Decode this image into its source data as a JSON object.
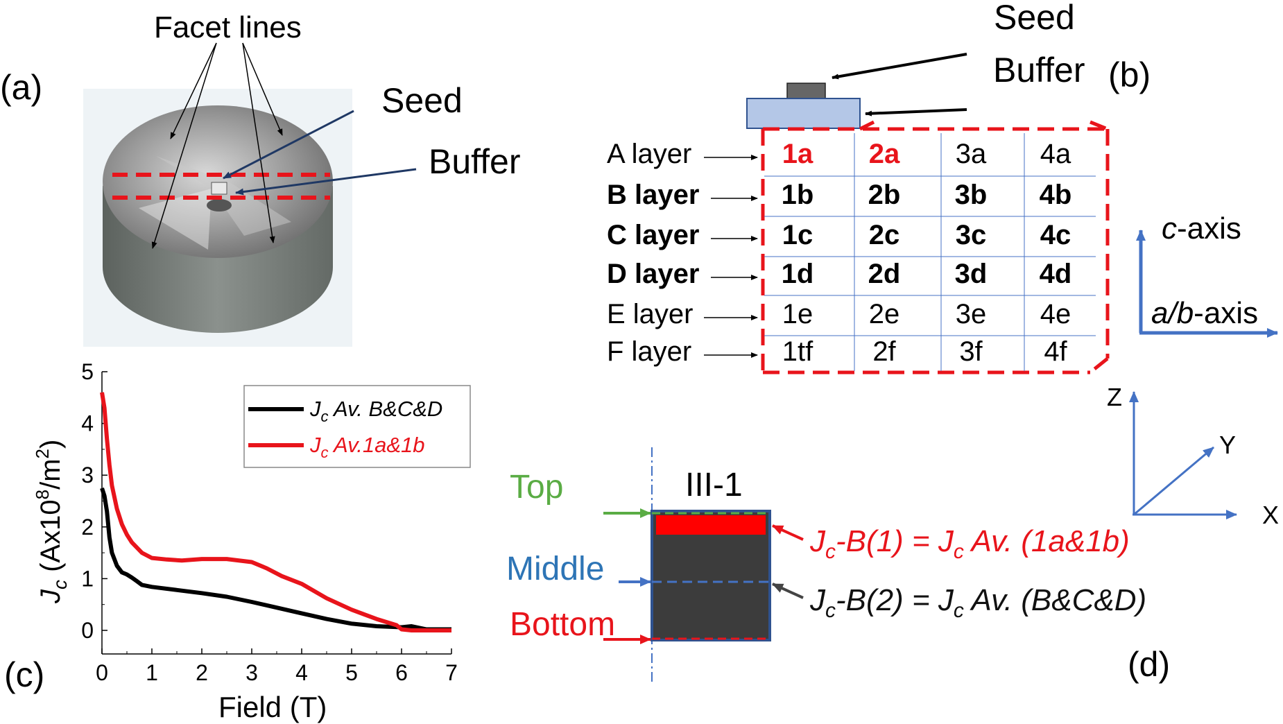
{
  "panel_a": {
    "label": "(a)",
    "facet_lines": "Facet lines",
    "seed": "Seed",
    "buffer": "Buffer"
  },
  "panel_b": {
    "label": "(b)",
    "seed": "Seed",
    "buffer": "Buffer",
    "layers": [
      {
        "name": "A layer",
        "bold": false,
        "cells": [
          "1a",
          "2a",
          "3a",
          "4a"
        ],
        "red": [
          true,
          true,
          false,
          false
        ]
      },
      {
        "name": "B layer",
        "bold": true,
        "cells": [
          "1b",
          "2b",
          "3b",
          "4b"
        ],
        "red": [
          false,
          false,
          false,
          false
        ]
      },
      {
        "name": "C layer",
        "bold": true,
        "cells": [
          "1c",
          "2c",
          "3c",
          "4c"
        ],
        "red": [
          false,
          false,
          false,
          false
        ]
      },
      {
        "name": "D layer",
        "bold": true,
        "cells": [
          "1d",
          "2d",
          "3d",
          "4d"
        ],
        "red": [
          false,
          false,
          false,
          false
        ]
      },
      {
        "name": "E layer",
        "bold": false,
        "cells": [
          "1e",
          "2e",
          "3e",
          "4e"
        ],
        "red": [
          false,
          false,
          false,
          false
        ]
      },
      {
        "name": "F layer",
        "bold": false,
        "cells": [
          "1tf",
          "2f",
          "3f",
          "4f"
        ],
        "red": [
          false,
          false,
          false,
          false
        ]
      }
    ],
    "c_axis": "c-axis",
    "ab_axis": "a/b-axis"
  },
  "panel_c": {
    "label": "(c)"
  },
  "panel_d": {
    "label": "(d)",
    "sample": "III-1",
    "top": "Top",
    "middle": "Middle",
    "bottom": "Bottom",
    "eq1": "Jc-B(1) = Jc Av. (1a&1b)",
    "eq2": "Jc-B(2) = Jc Av. (B&C&D)",
    "axes": {
      "z": "Z",
      "y": "Y",
      "x": "X"
    }
  },
  "colors": {
    "red": "#e8141b",
    "blue": "#4472c4",
    "green": "#5aac44",
    "dark_sample": "#3c3c3c"
  },
  "chart_data": {
    "type": "line",
    "xlabel": "Field (T)",
    "ylabel": "Jc (Ax10^8/m^2)",
    "xlim": [
      0,
      7
    ],
    "ylim": [
      0,
      5
    ],
    "xticks": [
      0,
      1,
      2,
      3,
      4,
      5,
      6,
      7
    ],
    "yticks": [
      0,
      1,
      2,
      3,
      4,
      5
    ],
    "legend_position": "top-right",
    "series": [
      {
        "name": "Jc Av. B&C&D",
        "color": "#000000",
        "x": [
          0,
          0.05,
          0.1,
          0.15,
          0.2,
          0.3,
          0.4,
          0.5,
          0.6,
          0.7,
          0.8,
          1.0,
          1.5,
          2.0,
          2.5,
          3.0,
          3.5,
          4.0,
          4.5,
          5.0,
          5.5,
          6.0,
          6.2,
          6.3,
          6.5,
          7.0
        ],
        "y": [
          2.75,
          2.6,
          2.3,
          1.8,
          1.5,
          1.25,
          1.12,
          1.08,
          1.02,
          0.95,
          0.88,
          0.84,
          0.78,
          0.72,
          0.65,
          0.55,
          0.44,
          0.33,
          0.22,
          0.13,
          0.08,
          0.06,
          0.08,
          0.06,
          0.02,
          0.02
        ]
      },
      {
        "name": "Jc Av.1a&1b",
        "color": "#e8141b",
        "x": [
          0,
          0.05,
          0.1,
          0.15,
          0.2,
          0.3,
          0.4,
          0.5,
          0.6,
          0.8,
          1.0,
          1.3,
          1.6,
          2.0,
          2.5,
          3.0,
          3.3,
          3.6,
          4.0,
          4.5,
          5.0,
          5.5,
          5.9,
          6.0,
          6.2,
          7.0
        ],
        "y": [
          4.6,
          4.3,
          3.7,
          3.2,
          2.8,
          2.35,
          2.05,
          1.85,
          1.7,
          1.5,
          1.4,
          1.37,
          1.35,
          1.38,
          1.38,
          1.32,
          1.2,
          1.05,
          0.9,
          0.62,
          0.4,
          0.22,
          0.1,
          0.02,
          0.0,
          0.0
        ]
      }
    ]
  }
}
